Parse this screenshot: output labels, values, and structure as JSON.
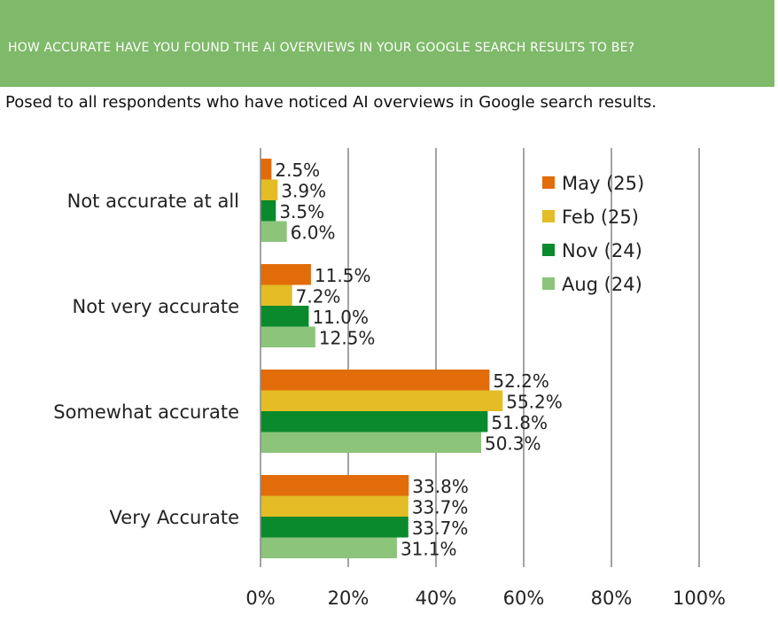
{
  "header": {
    "title": "HOW ACCURATE HAVE YOU FOUND THE AI OVERVIEWS IN YOUR GOOGLE SEARCH RESULTS TO BE?",
    "background": "#7fb96a"
  },
  "subtitle": "Posed to all respondents who have noticed AI overviews in Google search results.",
  "chart_data": {
    "type": "bar",
    "orientation": "horizontal",
    "categories": [
      "Not accurate at all",
      "Not very accurate",
      "Somewhat accurate",
      "Very Accurate"
    ],
    "series": [
      {
        "name": "May (25)",
        "color": "#e36c0a",
        "values": [
          2.5,
          11.5,
          52.2,
          33.8
        ]
      },
      {
        "name": "Feb (25)",
        "color": "#e3bc26",
        "values": [
          3.9,
          7.2,
          55.2,
          33.7
        ]
      },
      {
        "name": "Nov (24)",
        "color": "#0a8a2c",
        "values": [
          3.5,
          11.0,
          51.8,
          33.7
        ]
      },
      {
        "name": "Aug (24)",
        "color": "#8cc47b",
        "values": [
          6.0,
          12.5,
          50.3,
          31.1
        ]
      }
    ],
    "value_format": "{v}%",
    "xlim": [
      0,
      100
    ],
    "xticks": [
      "0%",
      "20%",
      "40%",
      "60%",
      "80%",
      "100%"
    ],
    "grid": true,
    "legend_position": "top-right"
  }
}
